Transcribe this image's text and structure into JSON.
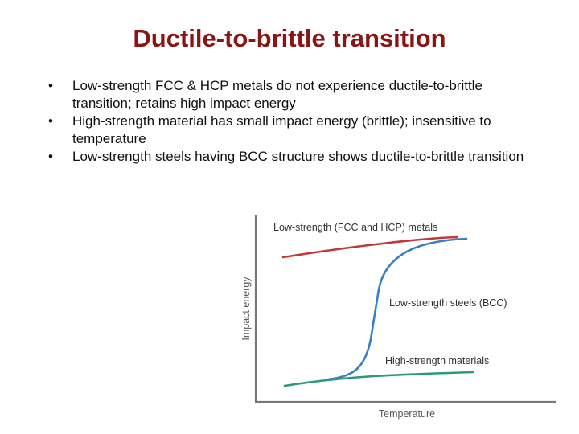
{
  "slide": {
    "title": "Ductile-to-brittle transition",
    "bullet_glyph": "•",
    "bullets": [
      "Low-strength FCC & HCP metals do not experience ductile-to-brittle transition; retains high impact energy",
      "High-strength material has small impact energy (brittle); insensitive to temperature",
      "Low-strength steels having BCC structure shows ductile-to-brittle transition"
    ]
  },
  "figure": {
    "y_axis_label": "Impact energy",
    "x_axis_label": "Temperature",
    "curves": [
      {
        "label": "Low-strength (FCC and HCP) metals",
        "color": "#c0393b"
      },
      {
        "label": "Low-strength steels (BCC)",
        "color": "#3a7fc1"
      },
      {
        "label": "High-strength materials",
        "color": "#2a9a7a"
      }
    ],
    "axis_color": "#777777"
  }
}
